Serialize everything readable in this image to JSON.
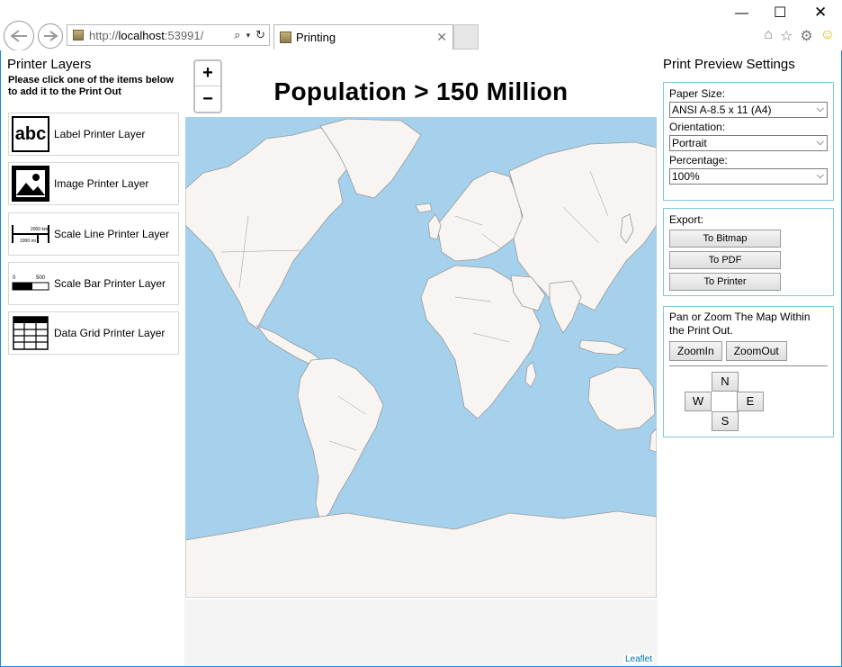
{
  "browser": {
    "url_prefix": "http://",
    "url_host": "localhost",
    "url_rest": ":53991/",
    "tab_title": "Printing"
  },
  "left_panel": {
    "title": "Printer Layers",
    "hint": "Please click one of the items below to add it to the Print Out",
    "items": [
      {
        "label": "Label Printer Layer",
        "icon": "label-text-icon"
      },
      {
        "label": "Image Printer Layer",
        "icon": "image-icon"
      },
      {
        "label": "Scale Line Printer Layer",
        "icon": "scale-line-icon"
      },
      {
        "label": "Scale Bar Printer Layer",
        "icon": "scale-bar-icon"
      },
      {
        "label": "Data Grid Printer Layer",
        "icon": "data-grid-icon"
      }
    ],
    "icon_text": {
      "abc": "abc",
      "scale_line_top": "2000 km",
      "scale_line_bottom": "1000 mi",
      "scale_bar_left": "0",
      "scale_bar_right": "500"
    }
  },
  "map": {
    "title": "Population > 150 Million",
    "zoom_in": "+",
    "zoom_out": "−",
    "attribution": "Leaflet",
    "colors": {
      "ocean": "#a5d1ed",
      "land": "#f7f4f1",
      "border": "#9a9a9a"
    }
  },
  "right_panel": {
    "title": "Print Preview Settings",
    "paper_size_label": "Paper Size:",
    "paper_size_value": "ANSI A-8.5 x 11 (A4)",
    "orientation_label": "Orientation:",
    "orientation_value": "Portrait",
    "percentage_label": "Percentage:",
    "percentage_value": "100%",
    "export_label": "Export:",
    "export_buttons": [
      "To Bitmap",
      "To PDF",
      "To Printer"
    ],
    "pan_zoom_text": "Pan or Zoom The Map Within the Print Out.",
    "zoom_in_label": "ZoomIn",
    "zoom_out_label": "ZoomOut",
    "compass": {
      "n": "N",
      "s": "S",
      "e": "E",
      "w": "W"
    }
  }
}
